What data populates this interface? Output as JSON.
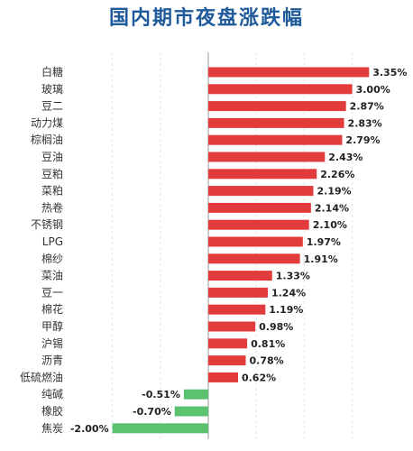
{
  "chart_data": {
    "type": "bar",
    "orientation": "horizontal",
    "title": "国内期市夜盘涨跌幅",
    "categories": [
      "白糖",
      "玻璃",
      "豆二",
      "动力煤",
      "棕榈油",
      "豆油",
      "豆粕",
      "菜粕",
      "热卷",
      "不锈钢",
      "LPG",
      "棉纱",
      "菜油",
      "豆一",
      "棉花",
      "甲醇",
      "沪锡",
      "沥青",
      "低硫燃油",
      "纯碱",
      "橡胶",
      "焦炭"
    ],
    "values": [
      3.35,
      3.0,
      2.87,
      2.83,
      2.79,
      2.43,
      2.26,
      2.19,
      2.14,
      2.1,
      1.97,
      1.91,
      1.33,
      1.24,
      1.19,
      0.98,
      0.81,
      0.78,
      0.62,
      -0.51,
      -0.7,
      -2.0
    ],
    "value_labels": [
      "3.35%",
      "3.00%",
      "2.87%",
      "2.83%",
      "2.79%",
      "2.43%",
      "2.26%",
      "2.19%",
      "2.14%",
      "2.10%",
      "1.97%",
      "1.91%",
      "1.33%",
      "1.24%",
      "1.19%",
      "0.98%",
      "0.81%",
      "0.78%",
      "0.62%",
      "-0.51%",
      "-0.70%",
      "-2.00%"
    ],
    "xlim": [
      -2.0,
      3.5
    ],
    "grid": true,
    "legend": "none",
    "colors": {
      "positive": "#e23b3b",
      "negative": "#5cc26f"
    }
  }
}
